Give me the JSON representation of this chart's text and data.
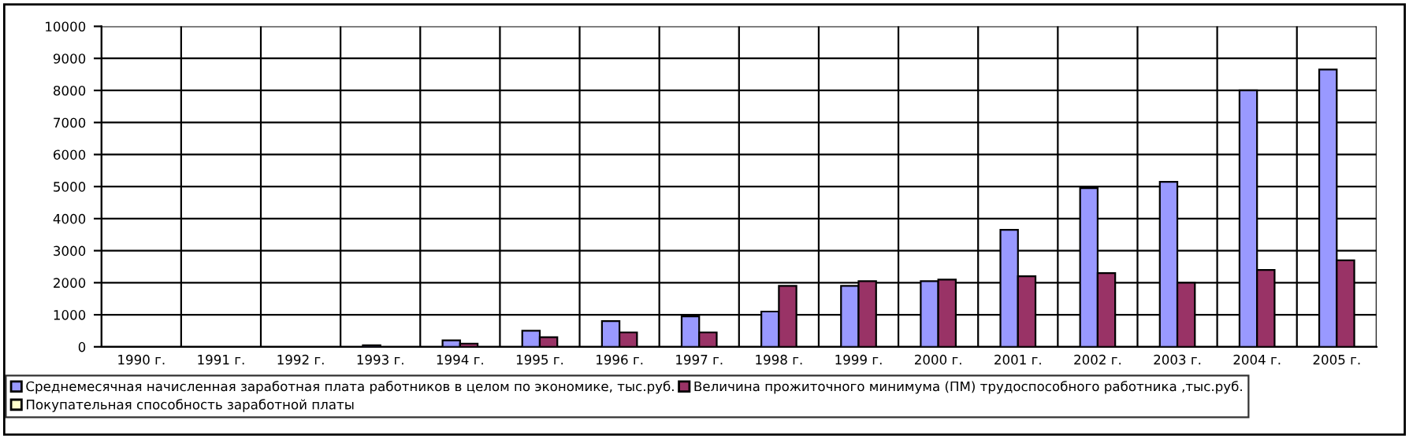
{
  "chart_data": {
    "type": "bar",
    "categories": [
      "1990 г.",
      "1991 г.",
      "1992 г.",
      "1993 г.",
      "1994 г.",
      "1995 г.",
      "1996 г.",
      "1997 г.",
      "1998 г.",
      "1999 г.",
      "2000 г.",
      "2001 г.",
      "2002 г.",
      "2003 г.",
      "2004 г.",
      "2005 г."
    ],
    "series": [
      {
        "name": "Среднемесячная начисленная заработная плата работников в целом по экономике, тыс.руб.",
        "color": "#9999ff",
        "values": [
          null,
          null,
          null,
          50,
          200,
          500,
          800,
          950,
          1100,
          1900,
          2050,
          3650,
          4950,
          5150,
          8000,
          8650
        ]
      },
      {
        "name": "Величина прожиточного минимума (ПМ) трудоспособного работника ,тыс.руб.",
        "color": "#993366",
        "values": [
          null,
          null,
          null,
          null,
          100,
          300,
          450,
          450,
          1900,
          2050,
          2100,
          2200,
          2300,
          2000,
          2400,
          2700
        ]
      },
      {
        "name": "Покупательная способность заработной платы",
        "color": "#ffffcc",
        "values": [
          null,
          null,
          null,
          null,
          null,
          null,
          null,
          null,
          null,
          null,
          null,
          null,
          null,
          null,
          null,
          null
        ]
      }
    ],
    "ylim": [
      0,
      10000
    ],
    "yticks": [
      0,
      1000,
      2000,
      3000,
      4000,
      5000,
      6000,
      7000,
      8000,
      9000,
      10000
    ],
    "grid": true,
    "legend": "bottom"
  }
}
